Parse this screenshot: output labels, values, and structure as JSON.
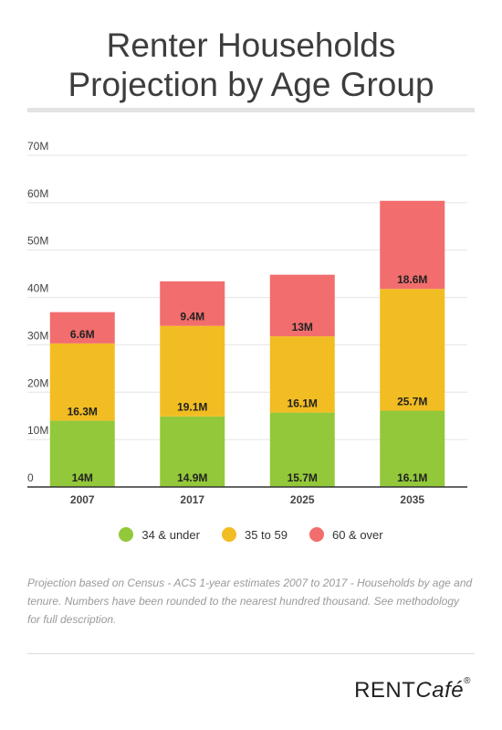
{
  "header": {
    "title_line1": "Renter Households",
    "title_line2": "Projection by Age Group"
  },
  "chart_data": {
    "type": "bar",
    "stacked": true,
    "title": "Renter Households Projection by Age Group",
    "xlabel": "",
    "ylabel": "",
    "categories": [
      "2007",
      "2017",
      "2025",
      "2035"
    ],
    "ylim": [
      0,
      70
    ],
    "yticks": [
      0,
      10,
      20,
      30,
      40,
      50,
      60,
      70
    ],
    "ytick_labels": [
      "0",
      "10M",
      "20M",
      "30M",
      "40M",
      "50M",
      "60M",
      "70M"
    ],
    "grid": true,
    "legend_position": "bottom",
    "series": [
      {
        "name": "34 & under",
        "color": "#93c83a",
        "values": [
          14,
          14.9,
          15.7,
          16.1
        ],
        "labels": [
          "14M",
          "14.9M",
          "15.7M",
          "16.1M"
        ]
      },
      {
        "name": "35 to 59",
        "color": "#f2bd22",
        "values": [
          16.3,
          19.1,
          16.1,
          25.7
        ],
        "labels": [
          "16.3M",
          "19.1M",
          "16.1M",
          "25.7M"
        ]
      },
      {
        "name": "60 & over",
        "color": "#f26d6d",
        "values": [
          6.6,
          9.4,
          13,
          18.6
        ],
        "labels": [
          "6.6M",
          "9.4M",
          "13M",
          "18.6M"
        ]
      }
    ]
  },
  "footnote": "Projection based on Census - ACS 1-year estimates 2007 to 2017 - Households by age and tenure.  Numbers have been rounded to the nearest hundred thousand. See methodology for full description.",
  "brand": {
    "rent": "RENT",
    "cafe": "Café",
    "mark": "®"
  }
}
